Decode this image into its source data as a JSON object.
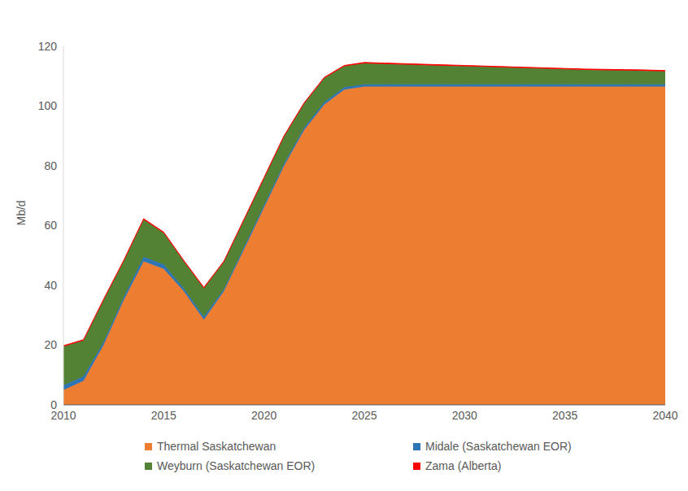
{
  "chart_data": {
    "type": "area",
    "stacked": true,
    "grid": false,
    "legend": "bottom",
    "y_label": "Mb/d",
    "x": [
      2010,
      2011,
      2012,
      2013,
      2014,
      2015,
      2016,
      2017,
      2018,
      2019,
      2020,
      2021,
      2022,
      2023,
      2024,
      2025,
      2026,
      2027,
      2028,
      2029,
      2030,
      2031,
      2032,
      2033,
      2034,
      2035,
      2036,
      2037,
      2038,
      2039,
      2040
    ],
    "xlim": [
      2010,
      2040
    ],
    "xticks": [
      2010,
      2015,
      2020,
      2025,
      2030,
      2035,
      2040
    ],
    "ylim": [
      0,
      120
    ],
    "yticks": [
      0,
      20,
      40,
      60,
      80,
      100,
      120
    ],
    "series": [
      {
        "name": "Thermal Saskatchewan",
        "color": "#ED7D31",
        "values": [
          5,
          8,
          20,
          35,
          48,
          45.5,
          38,
          28.5,
          38,
          52,
          66,
          80,
          92,
          100.5,
          105.5,
          106.5,
          106.5,
          106.5,
          106.5,
          106.5,
          106.5,
          106.5,
          106.5,
          106.5,
          106.5,
          106.5,
          106.5,
          106.5,
          106.5,
          106.5,
          106.5
        ]
      },
      {
        "name": "Midale (Saskatchewan EOR)",
        "color": "#2E75B6",
        "values": [
          1.5,
          1.5,
          1,
          1,
          1.5,
          1.5,
          1,
          1,
          0.8,
          0.8,
          0.8,
          0.8,
          0.8,
          0.8,
          0.8,
          0.8,
          0.8,
          0.8,
          0.8,
          0.8,
          0.8,
          0.8,
          0.8,
          0.8,
          0.8,
          0.8,
          0.8,
          0.8,
          0.8,
          0.8,
          0.8
        ]
      },
      {
        "name": "Weyburn (Saskatchewan EOR)",
        "color": "#548235",
        "values": [
          13,
          12,
          14,
          12,
          12.5,
          10.5,
          9,
          9.5,
          9,
          9,
          9,
          9,
          8,
          8,
          7,
          7,
          6.8,
          6.6,
          6.4,
          6.2,
          6,
          5.8,
          5.6,
          5.4,
          5.2,
          5,
          4.8,
          4.7,
          4.6,
          4.5,
          4.3
        ]
      },
      {
        "name": "Zama (Alberta)",
        "color": "#FF0000",
        "values": [
          0.3,
          0.3,
          0.3,
          0.3,
          0.3,
          0.3,
          0.3,
          0.3,
          0.3,
          0.3,
          0.3,
          0.3,
          0.3,
          0.3,
          0.3,
          0.3,
          0.3,
          0.3,
          0.3,
          0.3,
          0.3,
          0.3,
          0.3,
          0.3,
          0.3,
          0.3,
          0.3,
          0.3,
          0.3,
          0.3,
          0.3
        ]
      }
    ]
  }
}
